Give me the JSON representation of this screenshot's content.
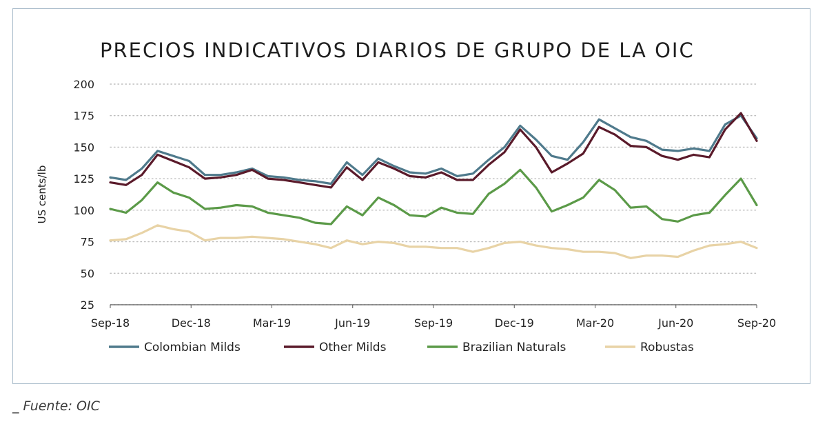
{
  "source": "_ Fuente: OIC",
  "chart_data": {
    "type": "line",
    "title": "PRECIOS INDICATIVOS DIARIOS DE GRUPO DE LA OIC",
    "ylabel": "US cents/lb",
    "xlabel": "",
    "ylim": [
      25,
      200
    ],
    "yticks": [
      25,
      50,
      75,
      100,
      125,
      150,
      175,
      200
    ],
    "xticks": [
      "Sep-18",
      "Dec-18",
      "Mar-19",
      "Jun-19",
      "Sep-19",
      "Dec-19",
      "Mar-20",
      "Jun-20",
      "Sep-20"
    ],
    "grid": "horizontal dotted",
    "legend_position": "bottom",
    "x": [
      "Sep-18",
      "Oct-18",
      "Oct-18",
      "Nov-18",
      "Nov-18",
      "Dec-18",
      "Jan-19",
      "Jan-19",
      "Feb-19",
      "Feb-19",
      "Mar-19",
      "Apr-19",
      "Apr-19",
      "May-19",
      "May-19",
      "Jun-19",
      "Jul-19",
      "Jul-19",
      "Aug-19",
      "Aug-19",
      "Sep-19",
      "Oct-19",
      "Oct-19",
      "Nov-19",
      "Nov-19",
      "Dec-19",
      "Jan-20",
      "Jan-20",
      "Feb-20",
      "Feb-20",
      "Mar-20",
      "Apr-20",
      "Apr-20",
      "May-20",
      "May-20",
      "Jun-20",
      "Jul-20",
      "Jul-20",
      "Aug-20",
      "Aug-20",
      "Sep-20",
      "Oct-20"
    ],
    "series": [
      {
        "name": "Colombian Milds",
        "color": "#4f7a8c",
        "values": [
          126,
          124,
          133,
          147,
          143,
          139,
          128,
          128,
          130,
          133,
          127,
          126,
          124,
          123,
          121,
          138,
          128,
          141,
          135,
          130,
          129,
          133,
          127,
          129,
          140,
          150,
          167,
          156,
          143,
          140,
          154,
          172,
          165,
          158,
          155,
          148,
          147,
          149,
          147,
          168,
          175,
          157
        ]
      },
      {
        "name": "Other Milds",
        "color": "#5a1a2a",
        "values": [
          122,
          120,
          128,
          144,
          139,
          134,
          125,
          126,
          128,
          132,
          125,
          124,
          122,
          120,
          118,
          134,
          124,
          138,
          133,
          127,
          126,
          130,
          124,
          124,
          136,
          146,
          164,
          150,
          130,
          137,
          145,
          166,
          160,
          151,
          150,
          143,
          140,
          144,
          142,
          164,
          177,
          155
        ]
      },
      {
        "name": "Brazilian Naturals",
        "color": "#5b9a48",
        "values": [
          101,
          98,
          108,
          122,
          114,
          110,
          101,
          102,
          104,
          103,
          98,
          96,
          94,
          90,
          89,
          103,
          96,
          110,
          104,
          96,
          95,
          102,
          98,
          97,
          113,
          121,
          132,
          118,
          99,
          104,
          110,
          124,
          116,
          102,
          103,
          93,
          91,
          96,
          98,
          112,
          125,
          104
        ]
      },
      {
        "name": "Robustas",
        "color": "#e8d3a6",
        "values": [
          76,
          77,
          82,
          88,
          85,
          83,
          76,
          78,
          78,
          79,
          78,
          77,
          75,
          73,
          70,
          76,
          73,
          75,
          74,
          71,
          71,
          70,
          70,
          67,
          70,
          74,
          75,
          72,
          70,
          69,
          67,
          67,
          66,
          62,
          64,
          64,
          63,
          68,
          72,
          73,
          75,
          70
        ]
      }
    ]
  }
}
